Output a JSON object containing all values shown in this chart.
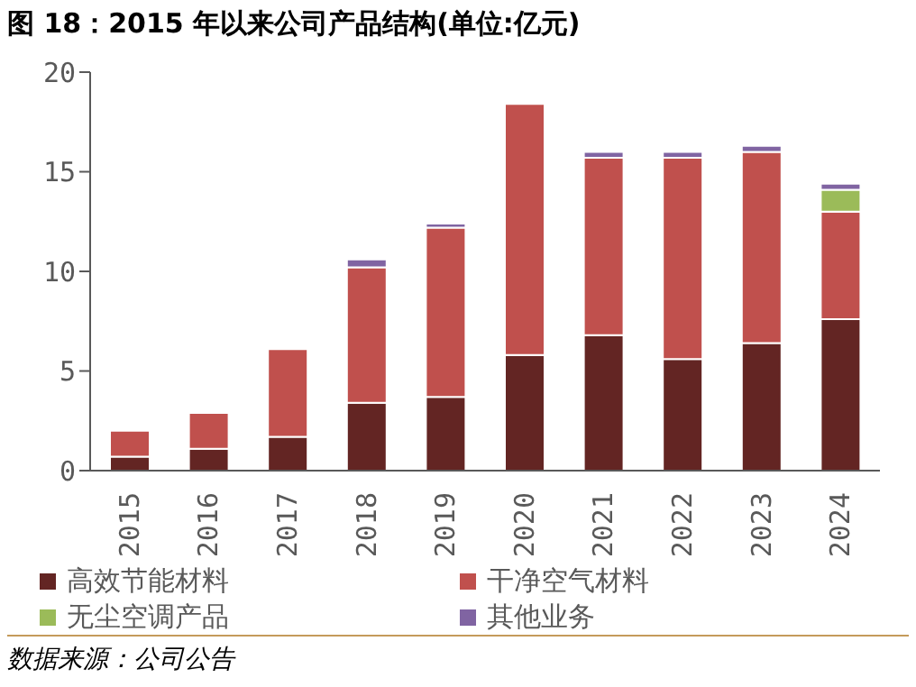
{
  "chart_data": {
    "type": "bar",
    "title": "图 18：2015 年以来公司产品结构(单位:亿元)",
    "categories": [
      "2015",
      "2016",
      "2017",
      "2018",
      "2019",
      "2020",
      "2021",
      "2022",
      "2023",
      "2024"
    ],
    "stacked": true,
    "series": [
      {
        "name": "高效节能材料",
        "color": "#632523",
        "values": [
          0.7,
          1.1,
          1.7,
          3.4,
          3.7,
          5.8,
          6.8,
          5.6,
          6.4,
          7.6
        ]
      },
      {
        "name": "干净空气材料",
        "color": "#c0504d",
        "values": [
          1.3,
          1.8,
          4.4,
          6.8,
          8.5,
          12.6,
          8.9,
          10.1,
          9.6,
          5.4
        ]
      },
      {
        "name": "无尘空调产品",
        "color": "#9bbb59",
        "values": [
          null,
          null,
          null,
          null,
          null,
          null,
          null,
          null,
          null,
          1.1
        ]
      },
      {
        "name": "其他业务",
        "color": "#8064a2",
        "values": [
          null,
          null,
          null,
          0.4,
          0.2,
          null,
          0.3,
          0.3,
          0.3,
          0.3
        ]
      }
    ],
    "ylim": [
      0,
      20
    ],
    "yticks": [
      0,
      5,
      10,
      15,
      20
    ],
    "grid": false,
    "legend": "bottom",
    "annotations": [
      "数据来源：公司公告"
    ]
  }
}
